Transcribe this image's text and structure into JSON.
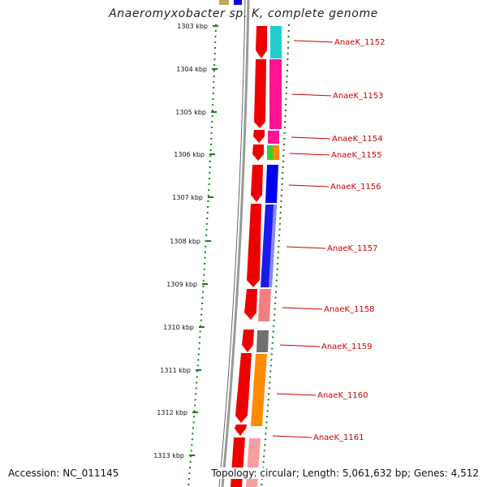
{
  "title": "Anaeromyxobacter sp. K, complete genome",
  "footer": {
    "accession": "Accession: NC_011145",
    "topology": "Topology: circular; Length: 5,061,632 bp; Genes: 4,512"
  },
  "ruler": {
    "ticks": [
      "1303 kbp",
      "1304 kbp",
      "1305 kbp",
      "1306 kbp",
      "1307 kbp",
      "1308 kbp",
      "1309 kbp",
      "1310 kbp",
      "1311 kbp",
      "1312 kbp",
      "1313 kbp"
    ]
  },
  "genes": [
    {
      "name": "AnaeK_1152",
      "color": "#22cccc"
    },
    {
      "name": "AnaeK_1153",
      "color": "#ff1493"
    },
    {
      "name": "AnaeK_1154",
      "color": "#ff1493"
    },
    {
      "name": "AnaeK_1155",
      "color": "#ff8c00"
    },
    {
      "name": "AnaeK_1156",
      "color": "#0000ee"
    },
    {
      "name": "AnaeK_1157",
      "color": "#1a1aee"
    },
    {
      "name": "AnaeK_1158",
      "color": "#f08080"
    },
    {
      "name": "AnaeK_1159",
      "color": "#707070"
    },
    {
      "name": "AnaeK_1160",
      "color": "#ff8c00"
    },
    {
      "name": "AnaeK_1161",
      "color": "#f4a0a0"
    }
  ],
  "colors": {
    "forward_strand": "#ee0000",
    "tick": "#1a7a1a",
    "backbone": "#888888",
    "label_line": "#cc0000"
  }
}
